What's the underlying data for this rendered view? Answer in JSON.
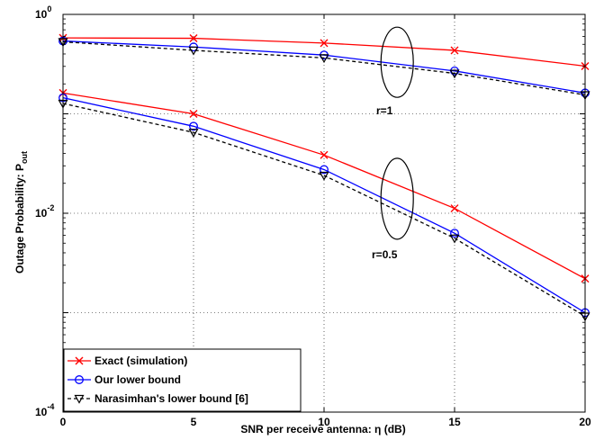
{
  "chart_data": {
    "type": "line",
    "xlabel": "SNR per receive antenna: η (dB)",
    "ylabel": "Outage Probability: P",
    "ylabel_sub": "out",
    "x_ticks": [
      "0",
      "5",
      "10",
      "15",
      "20"
    ],
    "y_ticks": [
      {
        "base": "10",
        "exp": "0"
      },
      {
        "base": "10",
        "exp": "-2"
      },
      {
        "base": "10",
        "exp": "-4"
      }
    ],
    "xlim": [
      0,
      20
    ],
    "ylim": [
      0.0001,
      1
    ],
    "yscale": "log",
    "grid": true,
    "legend_position": "bottom-left",
    "x": [
      0,
      5,
      10,
      15,
      20
    ],
    "series": [
      {
        "name": "Exact (simulation)",
        "color": "#ff0000",
        "marker": "x",
        "dash": "solid",
        "group": "r=1",
        "values": [
          0.58,
          0.575,
          0.515,
          0.435,
          0.302
        ]
      },
      {
        "name": "Our lower bound",
        "color": "#0000ff",
        "marker": "circle",
        "dash": "solid",
        "group": "r=1",
        "values": [
          0.54,
          0.47,
          0.39,
          0.27,
          0.162
        ]
      },
      {
        "name": "Narasimhan's lower bound [6]",
        "color": "#000000",
        "marker": "triangle-down",
        "dash": "dashed",
        "group": "r=1",
        "values": [
          0.53,
          0.435,
          0.365,
          0.255,
          0.155
        ]
      },
      {
        "name": "Exact (simulation)",
        "color": "#ff0000",
        "marker": "x",
        "dash": "solid",
        "group": "r=0.5",
        "values": [
          0.162,
          0.1,
          0.0385,
          0.0112,
          0.0022
        ]
      },
      {
        "name": "Our lower bound",
        "color": "#0000ff",
        "marker": "circle",
        "dash": "solid",
        "group": "r=0.5",
        "values": [
          0.145,
          0.075,
          0.0275,
          0.0063,
          0.001
        ]
      },
      {
        "name": "Narasimhan's lower bound [6]",
        "color": "#000000",
        "marker": "triangle-down",
        "dash": "dashed",
        "group": "r=0.5",
        "values": [
          0.127,
          0.065,
          0.024,
          0.0056,
          0.00092
        ]
      }
    ],
    "legend": [
      {
        "label": "Exact (simulation)",
        "color": "#ff0000",
        "marker": "x",
        "dash": "solid"
      },
      {
        "label": "Our lower bound",
        "color": "#0000ff",
        "marker": "circle",
        "dash": "solid"
      },
      {
        "label": "Narasimhan's lower bound [6]",
        "color": "#000000",
        "marker": "triangle-down",
        "dash": "dashed"
      }
    ],
    "annotations": [
      {
        "text": "r=1",
        "x": 12.8,
        "y": 0.33
      },
      {
        "text": "r=0.5",
        "x": 12.8,
        "y": 0.014
      }
    ]
  }
}
